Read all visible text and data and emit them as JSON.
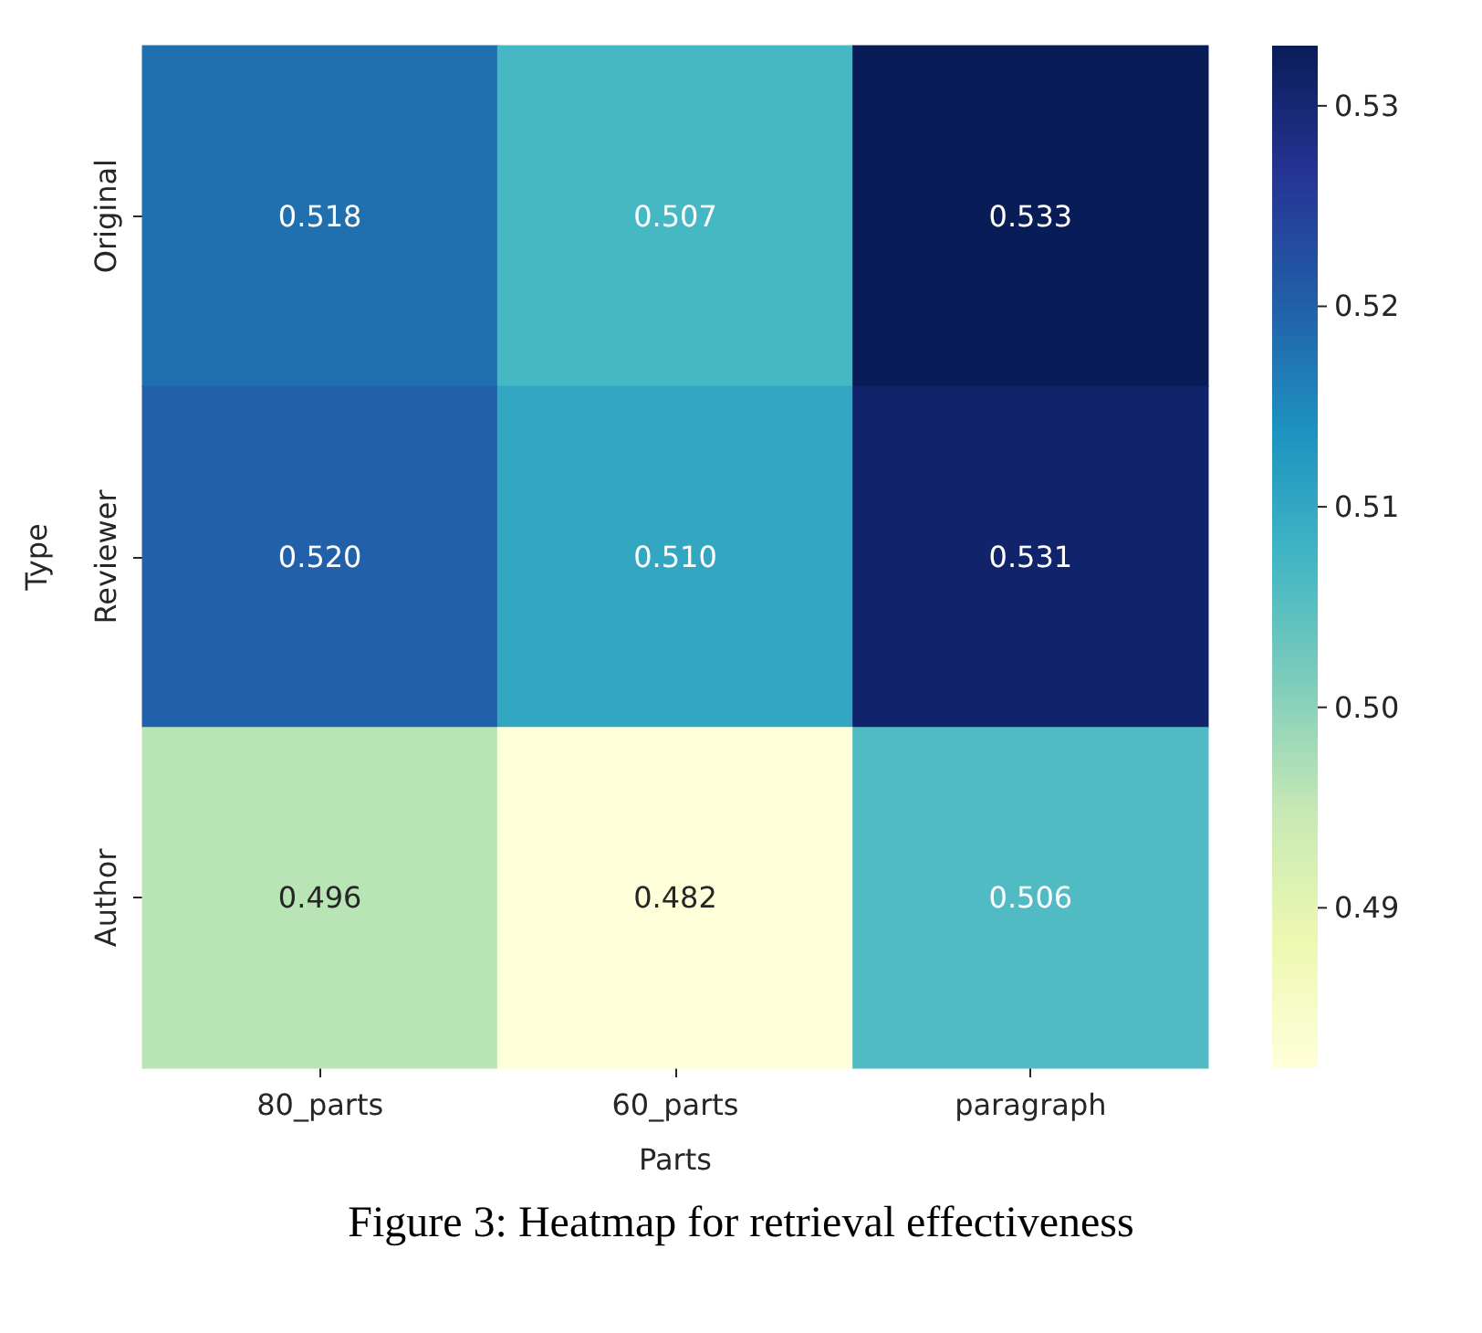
{
  "chart_data": {
    "type": "heatmap",
    "xlabel": "Parts",
    "ylabel": "Type",
    "categories": [
      "80_parts",
      "60_parts",
      "paragraph"
    ],
    "y_categories": [
      "Original",
      "Reviewer",
      "Author"
    ],
    "cells": [
      [
        0.518,
        0.507,
        0.533
      ],
      [
        0.52,
        0.51,
        0.531
      ],
      [
        0.496,
        0.482,
        0.506
      ]
    ],
    "data_labels": true,
    "cell_labels": [
      [
        "0.518",
        "0.507",
        "0.533"
      ],
      [
        "0.520",
        "0.510",
        "0.531"
      ],
      [
        "0.496",
        "0.482",
        "0.506"
      ]
    ],
    "clim": [
      0.482,
      0.533
    ],
    "cticks": [
      0.49,
      {
        "value": 0.5,
        "label": "0.50"
      },
      0.51,
      0.52,
      0.53
    ],
    "annotations": [
      "Figure 3: Heatmap for retrieval effectiveness"
    ]
  }
}
